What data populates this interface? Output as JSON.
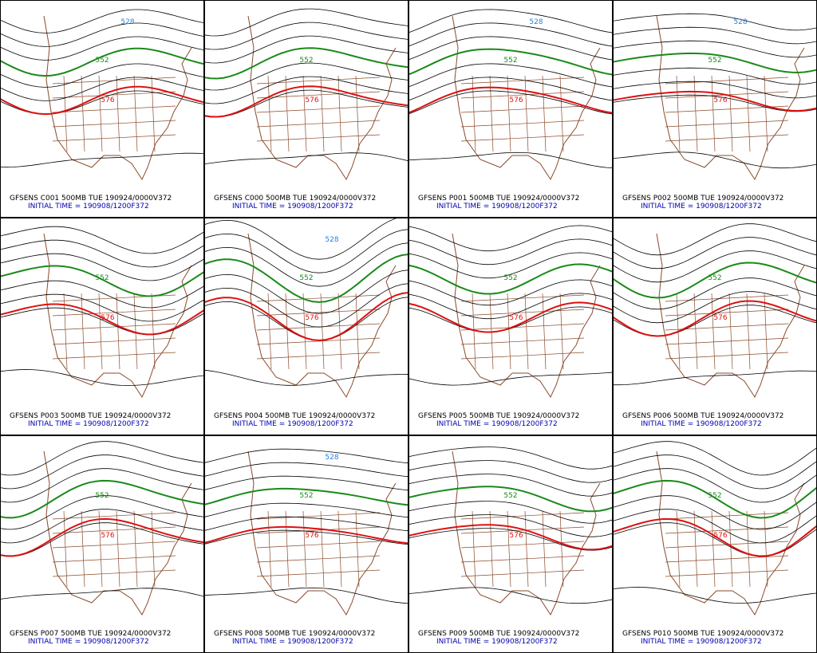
{
  "panels": [
    {
      "title": "GFSENS C001 500MB TUE 190924/0000V372",
      "init": "INITIAL TIME = 190908/1200F372",
      "contour_labels": [
        {
          "text": "552",
          "color": "#1a8a1a"
        },
        {
          "text": "576",
          "color": "#dd1111"
        },
        {
          "text": "528",
          "color": "#2a7fdc"
        }
      ]
    },
    {
      "title": "GFSENS C000 500MB TUE 190924/0000V372",
      "init": "INITIAL TIME = 190908/1200F372",
      "contour_labels": [
        {
          "text": "552",
          "color": "#1a8a1a"
        },
        {
          "text": "576",
          "color": "#dd1111"
        }
      ]
    },
    {
      "title": "GFSENS P001 500MB TUE 190924/0000V372",
      "init": "INITIAL TIME = 190908/1200F372",
      "contour_labels": [
        {
          "text": "552",
          "color": "#1a8a1a"
        },
        {
          "text": "576",
          "color": "#dd1111"
        },
        {
          "text": "528",
          "color": "#2a7fdc"
        }
      ]
    },
    {
      "title": "GFSENS P002 500MB TUE 190924/0000V372",
      "init": "INITIAL TIME = 190908/1200F372",
      "contour_labels": [
        {
          "text": "552",
          "color": "#1a8a1a"
        },
        {
          "text": "576",
          "color": "#dd1111"
        },
        {
          "text": "528",
          "color": "#2a7fdc"
        }
      ]
    },
    {
      "title": "GFSENS P003 500MB TUE 190924/0000V372",
      "init": "INITIAL TIME = 190908/1200F372",
      "contour_labels": [
        {
          "text": "552",
          "color": "#1a8a1a"
        },
        {
          "text": "576",
          "color": "#dd1111"
        }
      ]
    },
    {
      "title": "GFSENS P004 500MB TUE 190924/0000V372",
      "init": "INITIAL TIME = 190908/1200F372",
      "contour_labels": [
        {
          "text": "552",
          "color": "#1a8a1a"
        },
        {
          "text": "576",
          "color": "#dd1111"
        },
        {
          "text": "528",
          "color": "#2a7fdc"
        }
      ]
    },
    {
      "title": "GFSENS P005 500MB TUE 190924/0000V372",
      "init": "INITIAL TIME = 190908/1200F372",
      "contour_labels": [
        {
          "text": "552",
          "color": "#1a8a1a"
        },
        {
          "text": "576",
          "color": "#dd1111"
        }
      ]
    },
    {
      "title": "GFSENS P006 500MB TUE 190924/0000V372",
      "init": "INITIAL TIME = 190908/1200F372",
      "contour_labels": [
        {
          "text": "552",
          "color": "#1a8a1a"
        },
        {
          "text": "576",
          "color": "#dd1111"
        }
      ]
    },
    {
      "title": "GFSENS P007 500MB TUE 190924/0000V372",
      "init": "INITIAL TIME = 190908/1200F372",
      "contour_labels": [
        {
          "text": "552",
          "color": "#1a8a1a"
        },
        {
          "text": "576",
          "color": "#dd1111"
        }
      ]
    },
    {
      "title": "GFSENS P008 500MB TUE 190924/0000V372",
      "init": "INITIAL TIME = 190908/1200F372",
      "contour_labels": [
        {
          "text": "552",
          "color": "#1a8a1a"
        },
        {
          "text": "576",
          "color": "#dd1111"
        },
        {
          "text": "528",
          "color": "#2a7fdc"
        }
      ]
    },
    {
      "title": "GFSENS P009 500MB TUE 190924/0000V372",
      "init": "INITIAL TIME = 190908/1200F372",
      "contour_labels": [
        {
          "text": "552",
          "color": "#1a8a1a"
        },
        {
          "text": "576",
          "color": "#dd1111"
        }
      ]
    },
    {
      "title": "GFSENS P010 500MB TUE 190924/0000V372",
      "init": "INITIAL TIME = 190908/1200F372",
      "contour_labels": [
        {
          "text": "552",
          "color": "#1a8a1a"
        },
        {
          "text": "576",
          "color": "#dd1111"
        }
      ]
    }
  ]
}
